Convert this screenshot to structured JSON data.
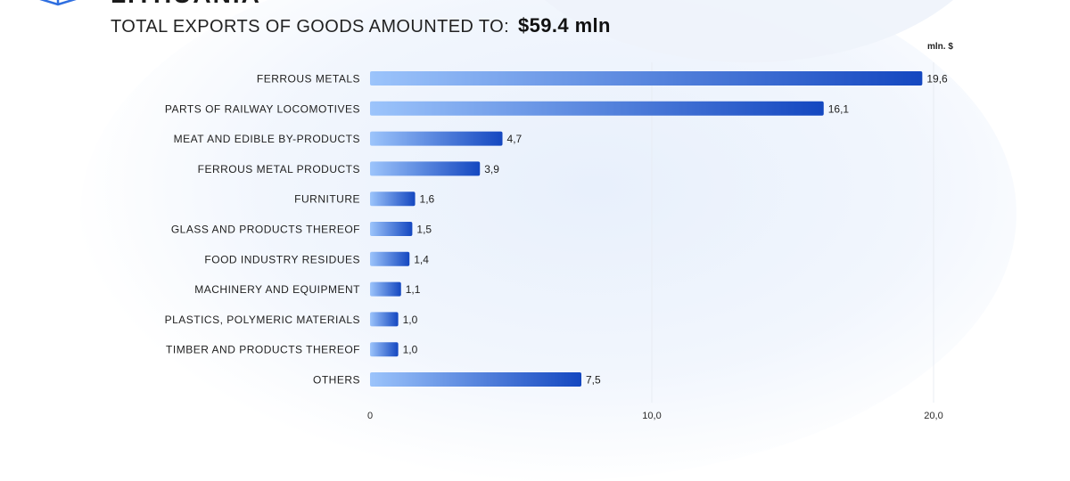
{
  "header": {
    "country_name": "LITHUANIA",
    "headline_label": "TOTAL EXPORTS OF GOODS AMOUNTED TO:",
    "headline_amount": "$59.4 mln"
  },
  "icons": {
    "logo": "stacked-layers-logo-icon"
  },
  "colors": {
    "bar_start": "#9cc4fb",
    "bar_end": "#1447c0",
    "grid": "#e8ecf3"
  },
  "chart_data": {
    "type": "bar",
    "orientation": "horizontal",
    "unit_label": "mln. $",
    "categories": [
      "FERROUS METALS",
      "PARTS OF RAILWAY LOCOMOTIVES",
      "MEAT AND EDIBLE BY-PRODUCTS",
      "FERROUS METAL PRODUCTS",
      "FURNITURE",
      "GLASS AND PRODUCTS THEREOF",
      "FOOD INDUSTRY RESIDUES",
      "MACHINERY AND EQUIPMENT",
      "PLASTICS, POLYMERIC MATERIALS",
      "TIMBER AND PRODUCTS THEREOF",
      "OTHERS"
    ],
    "values": [
      19.6,
      16.1,
      4.7,
      3.9,
      1.6,
      1.5,
      1.4,
      1.1,
      1.0,
      1.0,
      7.5
    ],
    "value_labels": [
      "19,6",
      "16,1",
      "4,7",
      "3,9",
      "1,6",
      "1,5",
      "1,4",
      "1,1",
      "1,0",
      "1,0",
      "7,5"
    ],
    "xlim": [
      0,
      20
    ],
    "x_ticks": [
      0,
      10,
      20
    ],
    "x_tick_labels": [
      "0",
      "10,0",
      "20,0"
    ],
    "grid": true
  }
}
